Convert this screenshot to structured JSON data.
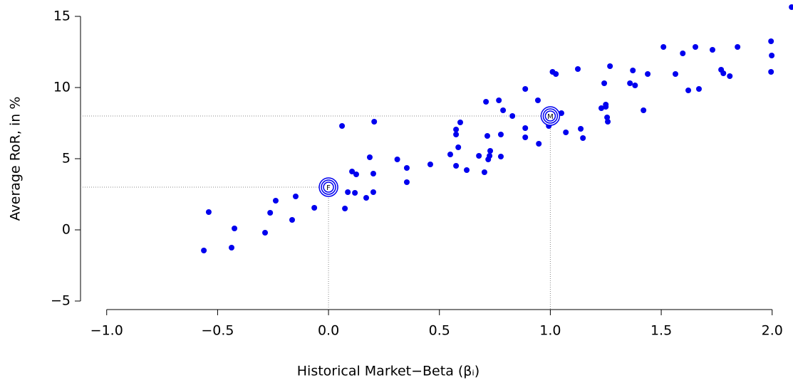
{
  "chart_data": {
    "type": "scatter",
    "x_label": "Historical Market−Beta (βᵢ)",
    "y_label": "Average RoR, in %",
    "xlim": [
      -1.118,
      2.094
    ],
    "ylim": [
      -5.6,
      15.65
    ],
    "xticks": [
      {
        "value": -1,
        "label": "−1.0"
      },
      {
        "value": -0.5,
        "label": "−0.5"
      },
      {
        "value": 0,
        "label": "0.0"
      },
      0.5,
      {
        "value": 1,
        "label": "1.0"
      },
      1.5,
      {
        "value": 2,
        "label": "2.0"
      }
    ],
    "yticks": [
      {
        "value": -5,
        "label": "−5"
      },
      0,
      5,
      10,
      15
    ],
    "x": [
      -0.562,
      -0.54,
      -0.437,
      -0.424,
      -0.286,
      -0.263,
      -0.238,
      -0.164,
      -0.148,
      -0.064,
      0.061,
      0.074,
      0.087,
      0.106,
      0.125,
      0.119,
      0.17,
      0.186,
      0.206,
      0.202,
      0.202,
      0.31,
      0.353,
      0.353,
      0.459,
      0.549,
      0.575,
      0.575,
      0.585,
      0.575,
      0.594,
      0.623,
      0.678,
      0.71,
      0.703,
      0.716,
      0.729,
      0.726,
      0.72,
      0.768,
      0.777,
      0.777,
      0.787,
      0.829,
      0.887,
      0.887,
      0.887,
      0.944,
      0.948,
      0.993,
      1.01,
      1.025,
      1.05,
      1.07,
      1.124,
      1.137,
      1.147,
      1.23,
      1.243,
      1.25,
      1.25,
      1.256,
      1.259,
      1.269,
      1.359,
      1.372,
      1.382,
      1.42,
      1.439,
      1.51,
      1.564,
      1.597,
      1.622,
      1.654,
      1.67,
      1.731,
      1.77,
      1.78,
      1.809,
      1.844,
      1.995,
      1.998,
      1.995,
      2.088
    ],
    "series": [
      {
        "color": "#0000ee",
        "values": [
          -1.45,
          1.25,
          -1.25,
          0.1,
          -0.2,
          1.2,
          2.05,
          0.7,
          2.35,
          1.55,
          7.3,
          1.5,
          2.65,
          4.1,
          3.9,
          2.6,
          2.25,
          5.1,
          7.6,
          3.95,
          2.65,
          4.95,
          4.35,
          3.35,
          4.6,
          5.3,
          7.05,
          6.7,
          5.8,
          4.5,
          7.55,
          4.2,
          5.2,
          9.0,
          4.05,
          6.6,
          5.55,
          5.2,
          4.95,
          9.1,
          6.7,
          5.15,
          8.4,
          8.0,
          9.9,
          7.15,
          6.5,
          9.1,
          6.05,
          7.3,
          11.1,
          10.95,
          8.2,
          6.85,
          11.3,
          7.1,
          6.45,
          8.55,
          10.3,
          8.8,
          8.65,
          7.9,
          7.6,
          11.5,
          10.3,
          11.2,
          10.15,
          8.4,
          10.95,
          12.85,
          10.95,
          12.4,
          9.8,
          12.85,
          9.9,
          12.65,
          11.25,
          11.0,
          10.8,
          12.85,
          13.25,
          12.25,
          11.1,
          15.65
        ]
      }
    ],
    "annotations": [
      {
        "label": "F",
        "x": 0,
        "y": 3
      },
      {
        "label": "M",
        "x": 1,
        "y": 8
      }
    ]
  }
}
